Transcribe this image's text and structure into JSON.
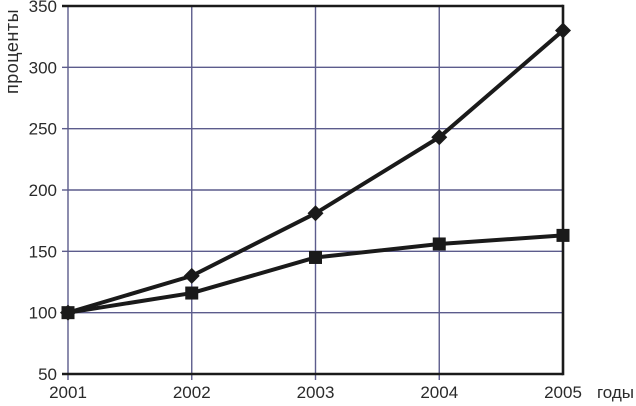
{
  "chart_data": {
    "type": "line",
    "title": "",
    "xlabel": "годы",
    "ylabel": "проценты",
    "categories": [
      "2001",
      "2002",
      "2003",
      "2004",
      "2005"
    ],
    "series": [
      {
        "name": "diamond-series",
        "marker": "diamond",
        "values": [
          100,
          130,
          181,
          243,
          330
        ]
      },
      {
        "name": "square-series",
        "marker": "square",
        "values": [
          100,
          116,
          145,
          156,
          163
        ]
      }
    ],
    "ylim": [
      50,
      350
    ],
    "yticks": [
      350,
      300,
      250,
      200,
      150,
      100,
      50
    ],
    "grid": true,
    "legend": "none",
    "colors": {
      "grid": "#5c5c8c",
      "frame": "#1a1a1a",
      "series": "#1a1a1a",
      "text": "#2a2a2a"
    }
  }
}
